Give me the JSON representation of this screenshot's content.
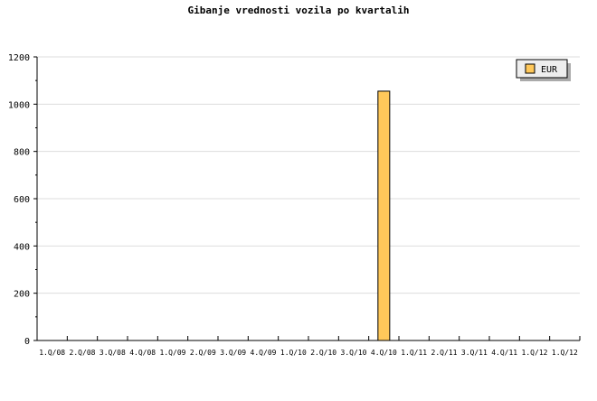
{
  "chart_data": {
    "type": "bar",
    "title": "Gibanje vrednosti vozila po kvartalih",
    "xlabel": "",
    "ylabel": "",
    "categories": [
      "1.Q/08",
      "2.Q/08",
      "3.Q/08",
      "4.Q/08",
      "1.Q/09",
      "2.Q/09",
      "3.Q/09",
      "4.Q/09",
      "1.Q/10",
      "2.Q/10",
      "3.Q/10",
      "4.Q/10",
      "1.Q/11",
      "2.Q/11",
      "3.Q/11",
      "4.Q/11",
      "1.Q/12",
      "1.Q/12"
    ],
    "series": [
      {
        "name": "EUR",
        "values": [
          0,
          0,
          0,
          0,
          0,
          0,
          0,
          0,
          0,
          0,
          0,
          1055,
          0,
          0,
          0,
          0,
          0,
          0
        ],
        "color": "#ffc85a"
      }
    ],
    "ylim": [
      0,
      1200
    ],
    "yticks": [
      0,
      200,
      400,
      600,
      800,
      1000,
      1200
    ],
    "grid": true,
    "legend": "top-right"
  }
}
